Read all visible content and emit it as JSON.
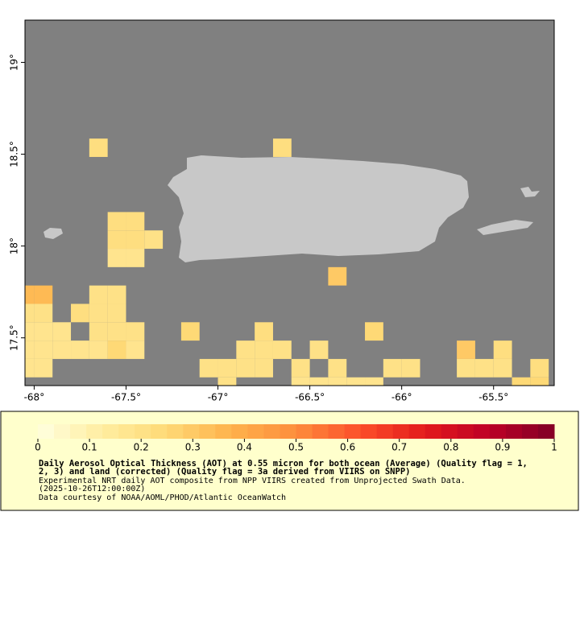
{
  "chart_data": {
    "type": "grid-map",
    "xlim": [
      -68.05,
      -65.17
    ],
    "ylim": [
      17.24,
      19.23
    ],
    "xticks": [
      {
        "value": -68,
        "label": "-68°"
      },
      {
        "value": -67.5,
        "label": "-67.5°"
      },
      {
        "value": -67,
        "label": "-67°"
      },
      {
        "value": -66.5,
        "label": "-66.5°"
      },
      {
        "value": -66,
        "label": "-66°"
      },
      {
        "value": -65.5,
        "label": "-65.5°"
      }
    ],
    "yticks": [
      {
        "value": 17.5,
        "label": "17.5°"
      },
      {
        "value": 18,
        "label": "18°"
      },
      {
        "value": 18.5,
        "label": "18.5°"
      },
      {
        "value": 19,
        "label": "19°"
      }
    ],
    "ocean_color": "#808080",
    "land_color": "#c8c8c8",
    "palette": [
      "#ffffe0",
      "#ffeda0",
      "#fed976",
      "#feb24c",
      "#fd8d3c",
      "#fc4e2a",
      "#e31a1c",
      "#bd0026",
      "#800026"
    ],
    "colorbar_lim": [
      0,
      1
    ],
    "colorbar_ticks": [
      0,
      0.1,
      0.2,
      0.3,
      0.4,
      0.5,
      0.6,
      0.7,
      0.8,
      0.9,
      1
    ],
    "title_lines": [
      "Daily Aerosol Optical Thickness (AOT) at 0.55 micron for both ocean (Average) (Quality flag = 1,",
      "2, 3) and land (corrected) (Quality flag = 3a derived from VIIRS on SNPP)"
    ],
    "notes": [
      "Experimental NRT daily AOT composite from NPP VIIRS created from Unprojected Swath Data.",
      "(2025-10-26T12:00:00Z)",
      "Data courtesy of NOAA/AOML/PHOD/Atlantic OceanWatch"
    ],
    "cells": [
      {
        "lon": -67.7,
        "lat": 18.485,
        "value": 0.22
      },
      {
        "lon": -66.7,
        "lat": 18.485,
        "value": 0.22
      },
      {
        "lon": -67.6,
        "lat": 18.085,
        "value": 0.22
      },
      {
        "lon": -67.5,
        "lat": 18.085,
        "value": 0.22
      },
      {
        "lon": -67.6,
        "lat": 17.985,
        "value": 0.22
      },
      {
        "lon": -67.5,
        "lat": 17.985,
        "value": 0.22
      },
      {
        "lon": -67.4,
        "lat": 17.985,
        "value": 0.2
      },
      {
        "lon": -67.6,
        "lat": 17.885,
        "value": 0.18
      },
      {
        "lon": -67.5,
        "lat": 17.885,
        "value": 0.18
      },
      {
        "lon": -66.4,
        "lat": 17.785,
        "value": 0.3
      },
      {
        "lon": -68.1,
        "lat": 17.685,
        "value": 0.35
      },
      {
        "lon": -68.0,
        "lat": 17.685,
        "value": 0.35
      },
      {
        "lon": -67.7,
        "lat": 17.685,
        "value": 0.2
      },
      {
        "lon": -67.6,
        "lat": 17.685,
        "value": 0.2
      },
      {
        "lon": -68.1,
        "lat": 17.585,
        "value": 0.2
      },
      {
        "lon": -68.0,
        "lat": 17.585,
        "value": 0.2
      },
      {
        "lon": -67.8,
        "lat": 17.585,
        "value": 0.22
      },
      {
        "lon": -67.7,
        "lat": 17.585,
        "value": 0.2
      },
      {
        "lon": -67.6,
        "lat": 17.585,
        "value": 0.2
      },
      {
        "lon": -68.1,
        "lat": 17.485,
        "value": 0.18
      },
      {
        "lon": -68.0,
        "lat": 17.485,
        "value": 0.18
      },
      {
        "lon": -67.9,
        "lat": 17.485,
        "value": 0.18
      },
      {
        "lon": -67.7,
        "lat": 17.485,
        "value": 0.2
      },
      {
        "lon": -67.6,
        "lat": 17.485,
        "value": 0.2
      },
      {
        "lon": -67.5,
        "lat": 17.485,
        "value": 0.2
      },
      {
        "lon": -67.2,
        "lat": 17.485,
        "value": 0.25
      },
      {
        "lon": -66.8,
        "lat": 17.485,
        "value": 0.22
      },
      {
        "lon": -66.2,
        "lat": 17.485,
        "value": 0.25
      },
      {
        "lon": -68.1,
        "lat": 17.385,
        "value": 0.18
      },
      {
        "lon": -68.0,
        "lat": 17.385,
        "value": 0.18
      },
      {
        "lon": -67.9,
        "lat": 17.385,
        "value": 0.18
      },
      {
        "lon": -67.8,
        "lat": 17.385,
        "value": 0.18
      },
      {
        "lon": -67.7,
        "lat": 17.385,
        "value": 0.18
      },
      {
        "lon": -67.6,
        "lat": 17.385,
        "value": 0.25
      },
      {
        "lon": -67.5,
        "lat": 17.385,
        "value": 0.18
      },
      {
        "lon": -66.9,
        "lat": 17.385,
        "value": 0.2
      },
      {
        "lon": -66.8,
        "lat": 17.385,
        "value": 0.2
      },
      {
        "lon": -66.7,
        "lat": 17.385,
        "value": 0.2
      },
      {
        "lon": -66.5,
        "lat": 17.385,
        "value": 0.2
      },
      {
        "lon": -65.7,
        "lat": 17.385,
        "value": 0.3
      },
      {
        "lon": -65.5,
        "lat": 17.385,
        "value": 0.22
      },
      {
        "lon": -68.1,
        "lat": 17.285,
        "value": 0.18
      },
      {
        "lon": -68.0,
        "lat": 17.285,
        "value": 0.18
      },
      {
        "lon": -67.1,
        "lat": 17.285,
        "value": 0.2
      },
      {
        "lon": -67.0,
        "lat": 17.285,
        "value": 0.2
      },
      {
        "lon": -66.9,
        "lat": 17.285,
        "value": 0.2
      },
      {
        "lon": -66.8,
        "lat": 17.285,
        "value": 0.2
      },
      {
        "lon": -66.6,
        "lat": 17.285,
        "value": 0.2
      },
      {
        "lon": -66.4,
        "lat": 17.285,
        "value": 0.2
      },
      {
        "lon": -66.1,
        "lat": 17.285,
        "value": 0.2
      },
      {
        "lon": -66.0,
        "lat": 17.285,
        "value": 0.2
      },
      {
        "lon": -65.7,
        "lat": 17.285,
        "value": 0.2
      },
      {
        "lon": -65.6,
        "lat": 17.285,
        "value": 0.2
      },
      {
        "lon": -65.5,
        "lat": 17.285,
        "value": 0.2
      },
      {
        "lon": -65.3,
        "lat": 17.285,
        "value": 0.22
      },
      {
        "lon": -67.0,
        "lat": 17.185,
        "value": 0.2
      },
      {
        "lon": -66.6,
        "lat": 17.185,
        "value": 0.18
      },
      {
        "lon": -66.5,
        "lat": 17.185,
        "value": 0.18
      },
      {
        "lon": -66.4,
        "lat": 17.185,
        "value": 0.18
      },
      {
        "lon": -66.3,
        "lat": 17.185,
        "value": 0.18
      },
      {
        "lon": -66.2,
        "lat": 17.185,
        "value": 0.18
      },
      {
        "lon": -65.4,
        "lat": 17.185,
        "value": 0.25
      },
      {
        "lon": -65.3,
        "lat": 17.185,
        "value": 0.25
      }
    ]
  }
}
